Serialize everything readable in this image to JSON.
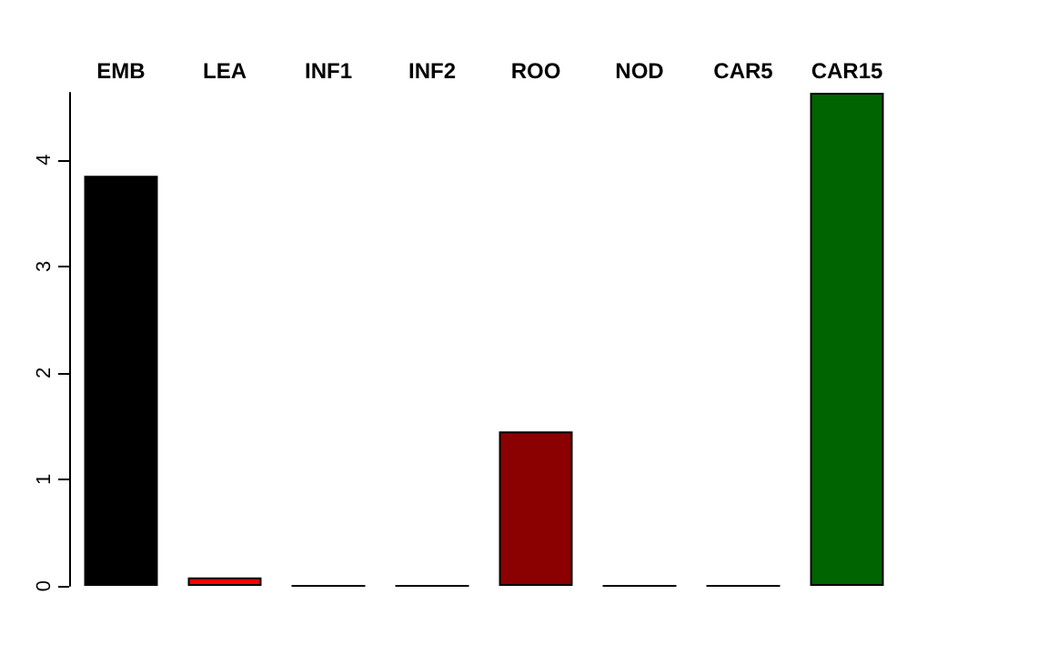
{
  "chart_data": {
    "type": "bar",
    "categories": [
      "EMB",
      "LEA",
      "INF1",
      "INF2",
      "ROO",
      "NOD",
      "CAR5",
      "CAR15"
    ],
    "values": [
      3.85,
      0.08,
      0,
      0,
      1.45,
      0,
      0,
      4.63
    ],
    "colors": [
      "#000000",
      "#ff0000",
      "#000000",
      "#000000",
      "#8b0000",
      "#000000",
      "#000000",
      "#006400"
    ],
    "ylim": [
      0,
      4.63
    ],
    "yticks": [
      0,
      1,
      2,
      3,
      4
    ],
    "grid": false
  }
}
